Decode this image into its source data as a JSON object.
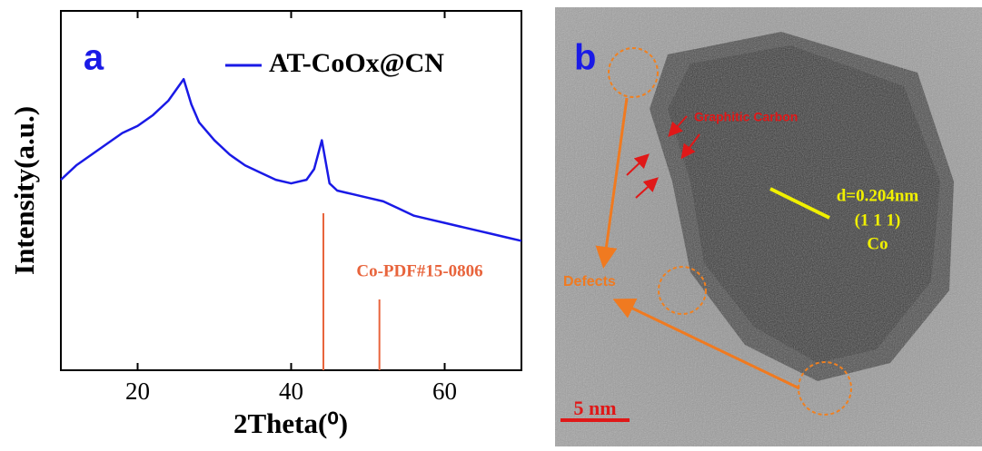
{
  "chart_data": {
    "type": "line",
    "panel_label": "a",
    "xlabel": "2Theta(⁰)",
    "ylabel": "Intensity(a.u.)",
    "xlim": [
      10,
      70
    ],
    "xticks": [
      20,
      40,
      60
    ],
    "ylim": [
      0,
      100
    ],
    "series": [
      {
        "name": "AT-CoOx@CN",
        "color": "#1a1ae6",
        "x": [
          10,
          12,
          14,
          16,
          18,
          20,
          22,
          24,
          25,
          26,
          27,
          28,
          30,
          32,
          34,
          36,
          38,
          40,
          42,
          43,
          44,
          45,
          46,
          48,
          50,
          52,
          54,
          56,
          58,
          60,
          62,
          64,
          66,
          68,
          70
        ],
        "values": [
          53,
          57,
          60,
          63,
          66,
          68,
          71,
          75,
          78,
          81,
          74,
          69,
          64,
          60,
          57,
          55,
          53,
          52,
          53,
          56,
          64,
          52,
          50,
          49,
          48,
          47,
          45,
          43,
          42,
          41,
          40,
          39,
          38,
          37,
          36
        ]
      }
    ],
    "reference": {
      "name": "Co-PDF#15-0806",
      "color": "#e8643c",
      "x": [
        44.2,
        51.5
      ],
      "values": [
        43.7,
        19.7
      ]
    },
    "legend": "upper right"
  },
  "image_panel": {
    "panel_label": "b",
    "annotations": [
      "Graphitic Carbon",
      "d=0.204nm",
      "(1 1 1)",
      "Co",
      "Defects"
    ],
    "scale_bar": "5 nm"
  }
}
